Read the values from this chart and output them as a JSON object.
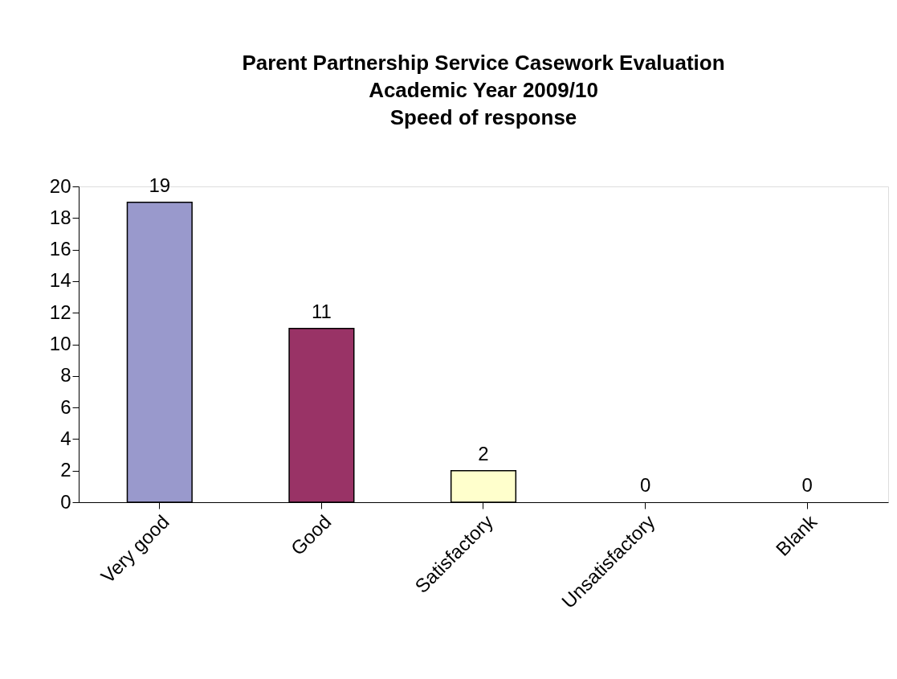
{
  "chart_data": {
    "type": "bar",
    "title": "Parent Partnership Service Casework Evaluation\nAcademic Year 2009/10\nSpeed of response",
    "categories": [
      "Very good",
      "Good",
      "Satisfactory",
      "Unsatisfactory",
      "Blank"
    ],
    "values": [
      19,
      11,
      2,
      0,
      0
    ],
    "colors": [
      "#9999cc",
      "#993366",
      "#ffffcc",
      null,
      null
    ],
    "ylim": [
      0,
      20
    ],
    "yticks": [
      0,
      2,
      4,
      6,
      8,
      10,
      12,
      14,
      16,
      18,
      20
    ],
    "data_labels": true,
    "grid": false
  }
}
